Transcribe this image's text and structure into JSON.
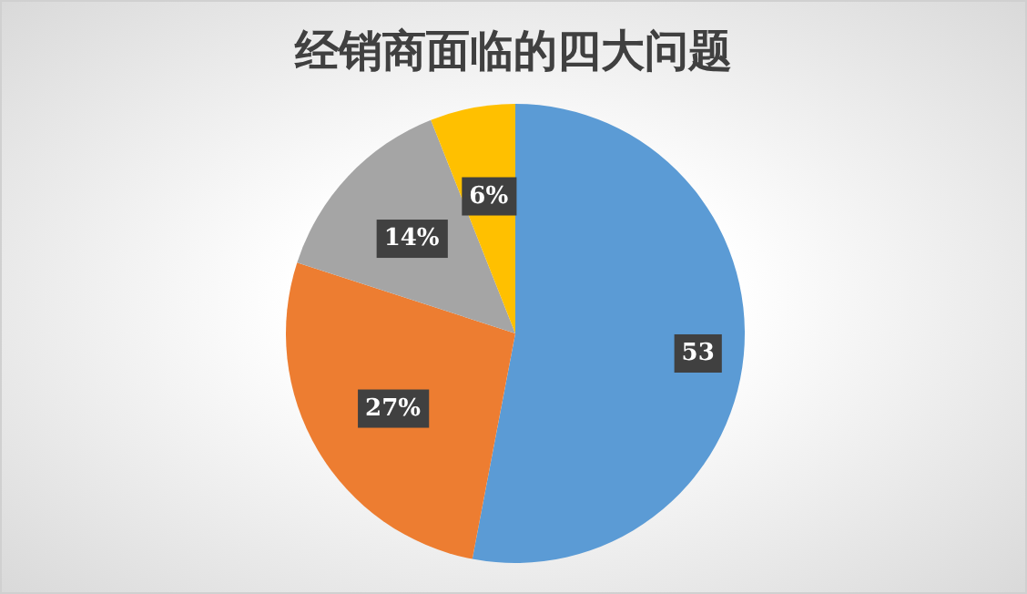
{
  "chart_data": {
    "type": "pie",
    "title": "经销商面临的四大问题",
    "categories": [
      null,
      null,
      null,
      null
    ],
    "values": [
      53,
      27,
      14,
      6
    ],
    "colors": [
      "#5b9bd5",
      "#ed7d31",
      "#a5a5a5",
      "#ffc000"
    ],
    "value_labels": [
      "53",
      "27%",
      "14%",
      "6%"
    ]
  }
}
